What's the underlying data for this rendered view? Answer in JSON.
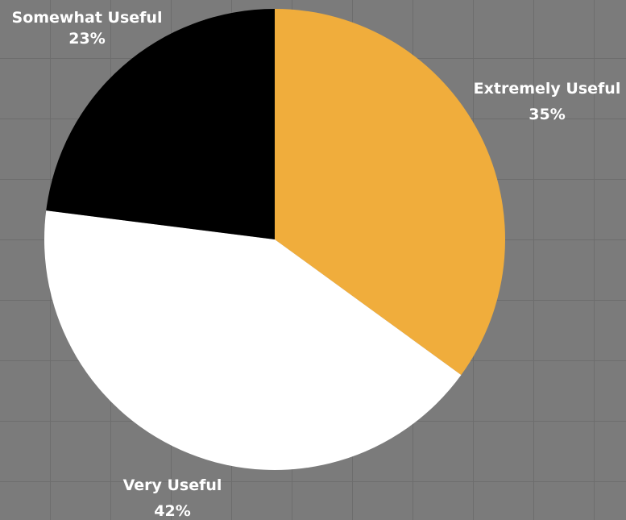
{
  "chart_data": {
    "type": "pie",
    "start_angle_deg": 0,
    "direction": "clockwise",
    "slices": [
      {
        "label": "Extremely Useful",
        "value": 35,
        "value_label": "35%",
        "color": "#f0ad3c"
      },
      {
        "label": "Very Useful",
        "value": 42,
        "value_label": "42%",
        "color": "#ffffff"
      },
      {
        "label": "Somewhat Useful",
        "value": 23,
        "value_label": "23%",
        "color": "#000000"
      }
    ],
    "background_color": "#7b7b7b",
    "grid": true,
    "legend": "none"
  }
}
